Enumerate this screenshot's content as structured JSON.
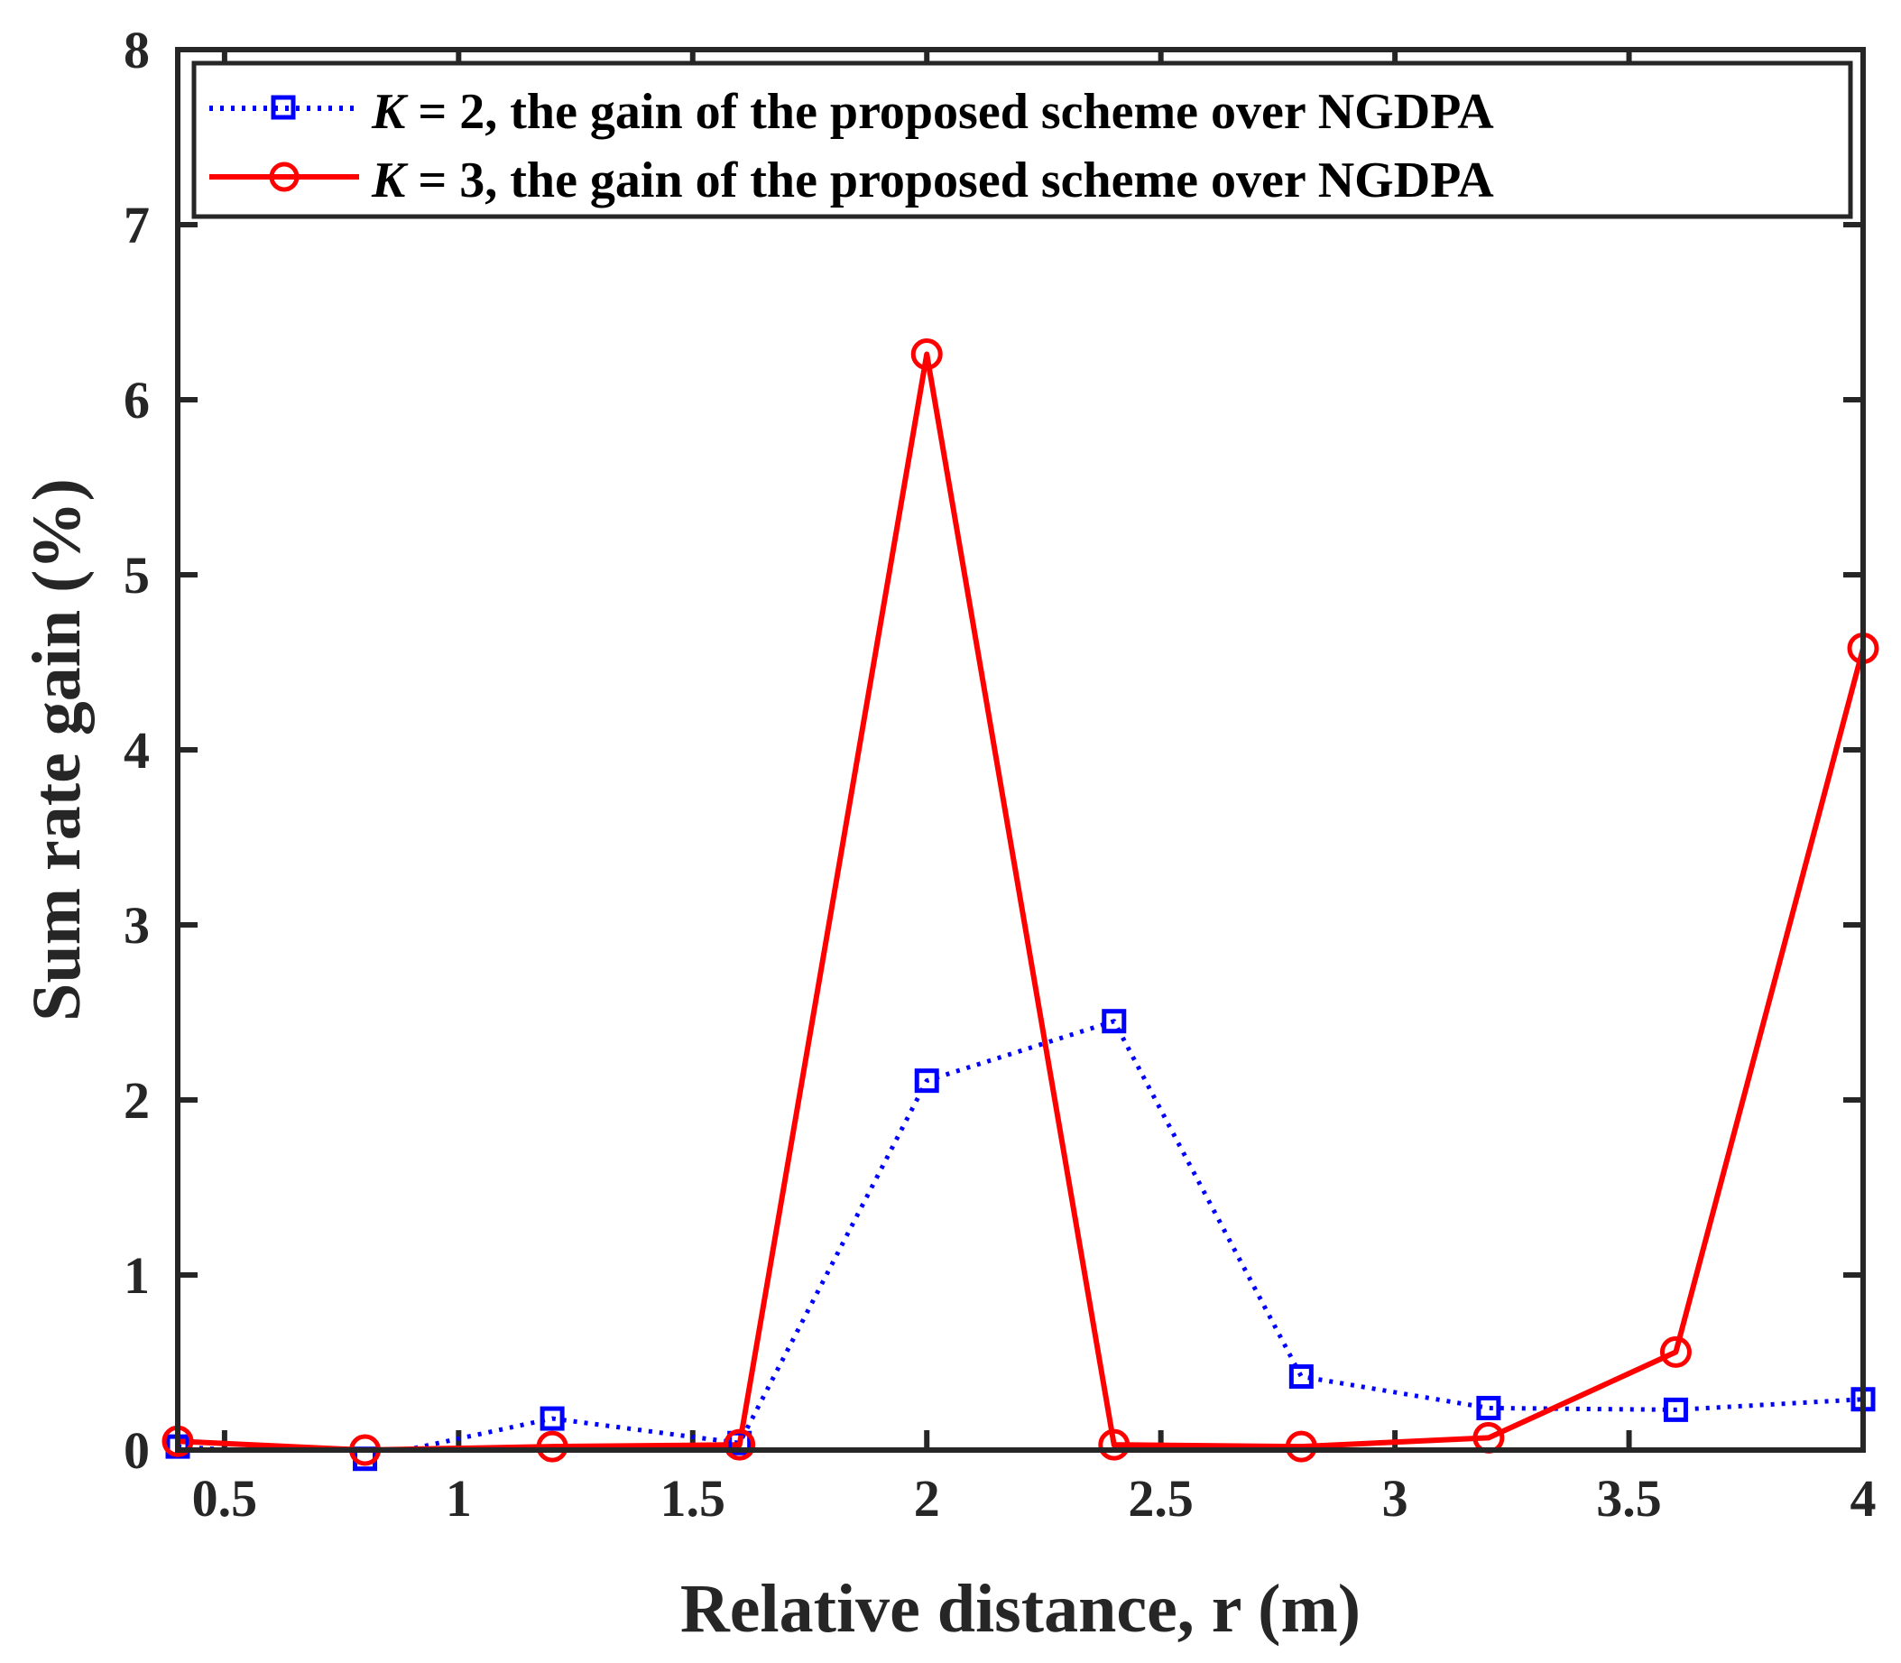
{
  "chart_data": {
    "type": "line",
    "title": "",
    "xlabel": "Relative distance, r (m)",
    "ylabel": "Sum rate gain (%)",
    "xlim": [
      0.4,
      4
    ],
    "ylim": [
      0,
      8
    ],
    "xticks": [
      0.5,
      1,
      1.5,
      2,
      2.5,
      3,
      3.5,
      4
    ],
    "xtick_labels": [
      "0.5",
      "1",
      "1.5",
      "2",
      "2.5",
      "3",
      "3.5",
      "4"
    ],
    "yticks": [
      0,
      1,
      2,
      3,
      4,
      5,
      6,
      7,
      8
    ],
    "ytick_labels": [
      "0",
      "1",
      "2",
      "3",
      "4",
      "5",
      "6",
      "7",
      "8"
    ],
    "grid": false,
    "legend_position": "top",
    "x": [
      0.4,
      0.8,
      1.2,
      1.6,
      2.0,
      2.4,
      2.8,
      3.2,
      3.6,
      4.0
    ],
    "series": [
      {
        "name": "K = 2, the gain of the proposed scheme over NGDPA",
        "legend_italic": "K",
        "legend_rest": " = 2, the gain of the proposed scheme over NGDPA",
        "color": "#0000ff",
        "line_style": "dotted",
        "marker": "square",
        "values": [
          0.02,
          -0.05,
          0.18,
          0.04,
          2.11,
          2.45,
          0.42,
          0.24,
          0.23,
          0.29
        ]
      },
      {
        "name": "K = 3, the gain of the proposed scheme over NGDPA",
        "legend_italic": "K",
        "legend_rest": " = 3, the gain of the proposed scheme over NGDPA",
        "color": "#ff0000",
        "line_style": "solid",
        "marker": "circle",
        "values": [
          0.05,
          0.0,
          0.02,
          0.03,
          6.26,
          0.03,
          0.02,
          0.07,
          0.56,
          4.58
        ]
      }
    ]
  }
}
